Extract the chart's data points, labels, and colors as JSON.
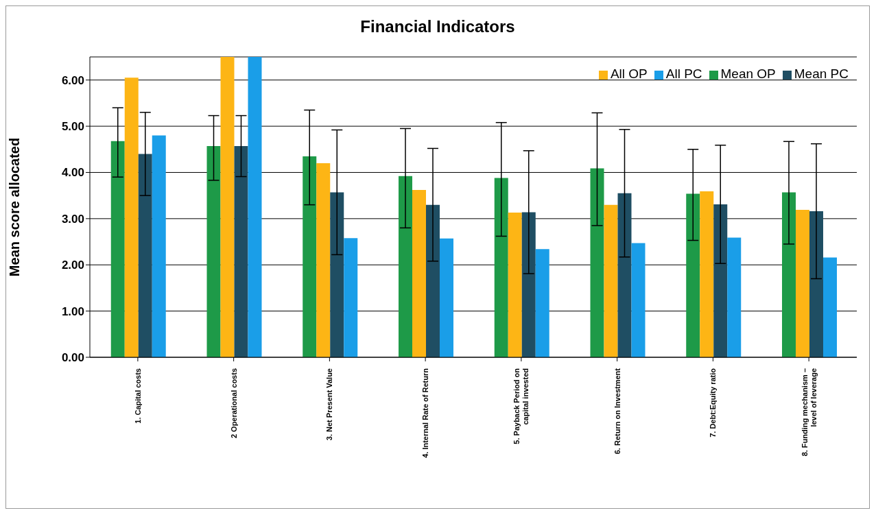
{
  "chart_data": {
    "type": "bar",
    "title": "Financial Indicators",
    "ylabel": "Mean score allocated",
    "categories": [
      "1. Capital costs",
      "2  Operational costs",
      "3. Net Present  Value",
      "4. Internal Rate of Return",
      "5. Payback  Period on capital invested",
      "6. Return on Investment",
      "7. Debt:Equity ratio",
      "8. Funding mechanism – level of leverage"
    ],
    "series": [
      {
        "name": "Mean OP",
        "color": "#1e9a48",
        "values": [
          4.68,
          4.57,
          4.35,
          3.92,
          3.88,
          4.09,
          3.54,
          3.57
        ],
        "errors": [
          [
            3.9,
            5.4
          ],
          [
            3.83,
            5.23
          ],
          [
            3.3,
            5.35
          ],
          [
            2.8,
            4.95
          ],
          [
            2.62,
            5.08
          ],
          [
            2.85,
            5.29
          ],
          [
            2.53,
            4.5
          ],
          [
            2.45,
            4.67
          ]
        ]
      },
      {
        "name": "All OP",
        "color": "#fdb515",
        "values": [
          6.05,
          6.5,
          4.2,
          3.62,
          3.13,
          3.3,
          3.59,
          3.19
        ]
      },
      {
        "name": "Mean PC",
        "color": "#1f4e63",
        "values": [
          4.4,
          4.57,
          3.57,
          3.3,
          3.14,
          3.55,
          3.31,
          3.16
        ],
        "errors": [
          0.9,
          0.66,
          1.35,
          1.22,
          1.33,
          1.38,
          1.28,
          1.46
        ]
      },
      {
        "name": "All PC",
        "color": "#1a9ee8",
        "values": [
          4.8,
          6.5,
          2.58,
          2.57,
          2.34,
          2.47,
          2.59,
          2.16
        ]
      }
    ],
    "ylim": [
      0,
      6.5
    ],
    "yticks": [
      {
        "value": 0,
        "label": "0.00"
      },
      {
        "value": 1,
        "label": "1.00"
      },
      {
        "value": 2,
        "label": "2.00"
      },
      {
        "value": 3,
        "label": "3.00"
      },
      {
        "value": 4,
        "label": "4.00"
      },
      {
        "value": 5,
        "label": "5.00"
      },
      {
        "value": 6,
        "label": "6.00"
      }
    ],
    "grid": "y",
    "legend": "top right"
  }
}
